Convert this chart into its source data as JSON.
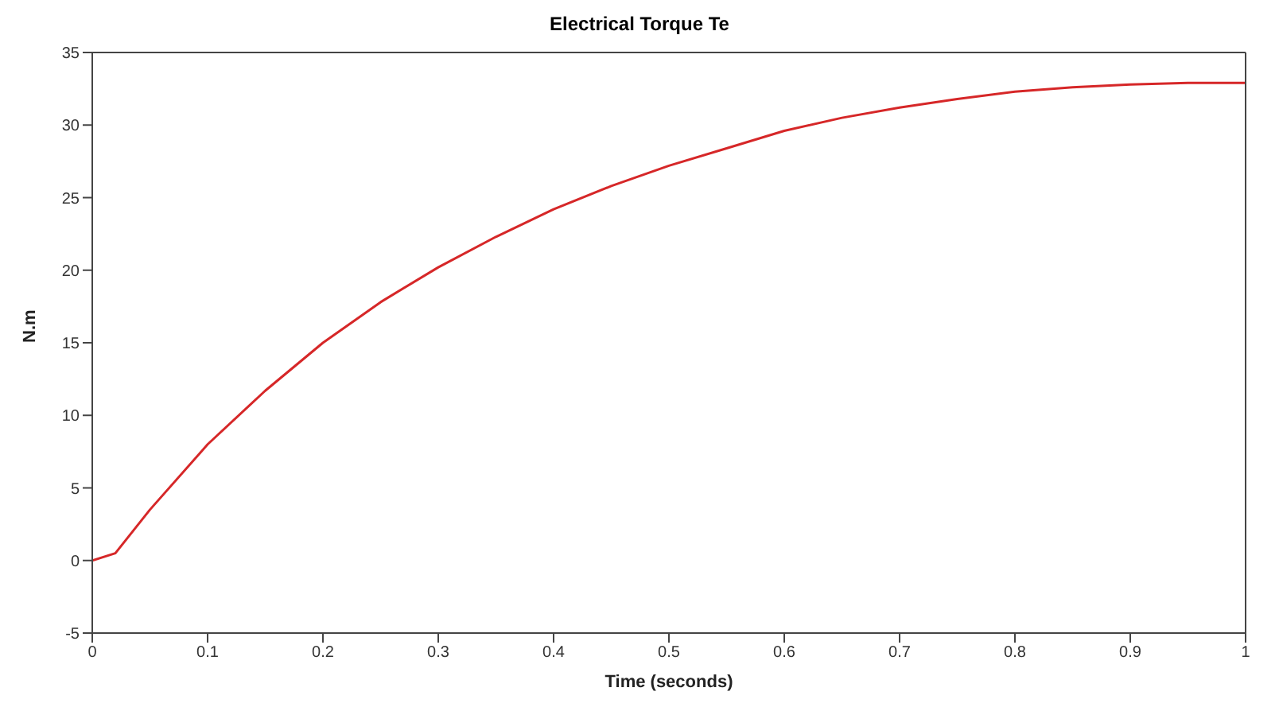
{
  "chart_data": {
    "type": "line",
    "title": "Electrical Torque Te",
    "xlabel": "Time (seconds)",
    "ylabel": "N.m",
    "x": [
      0,
      0.02,
      0.05,
      0.1,
      0.15,
      0.2,
      0.25,
      0.3,
      0.35,
      0.4,
      0.45,
      0.5,
      0.55,
      0.6,
      0.65,
      0.7,
      0.75,
      0.8,
      0.85,
      0.9,
      0.95,
      1.0
    ],
    "series": [
      {
        "color": "#d62728",
        "values": [
          0,
          0.5,
          3.5,
          8,
          11.7,
          15,
          17.8,
          20.2,
          22.3,
          24.2,
          25.8,
          27.2,
          28.4,
          29.6,
          30.5,
          31.2,
          31.8,
          32.3,
          32.6,
          32.8,
          32.9,
          32.9
        ]
      }
    ],
    "xlim": [
      0,
      1
    ],
    "xticks": [
      0,
      0.1,
      0.2,
      0.3,
      0.4,
      0.5,
      0.6,
      0.7,
      0.8,
      0.9,
      1
    ],
    "ylim": [
      -5,
      35
    ],
    "yticks": [
      -5,
      0,
      5,
      10,
      15,
      20,
      25,
      30,
      35
    ],
    "grid": false,
    "legend": false,
    "marker": "none",
    "line_style": "solid"
  }
}
